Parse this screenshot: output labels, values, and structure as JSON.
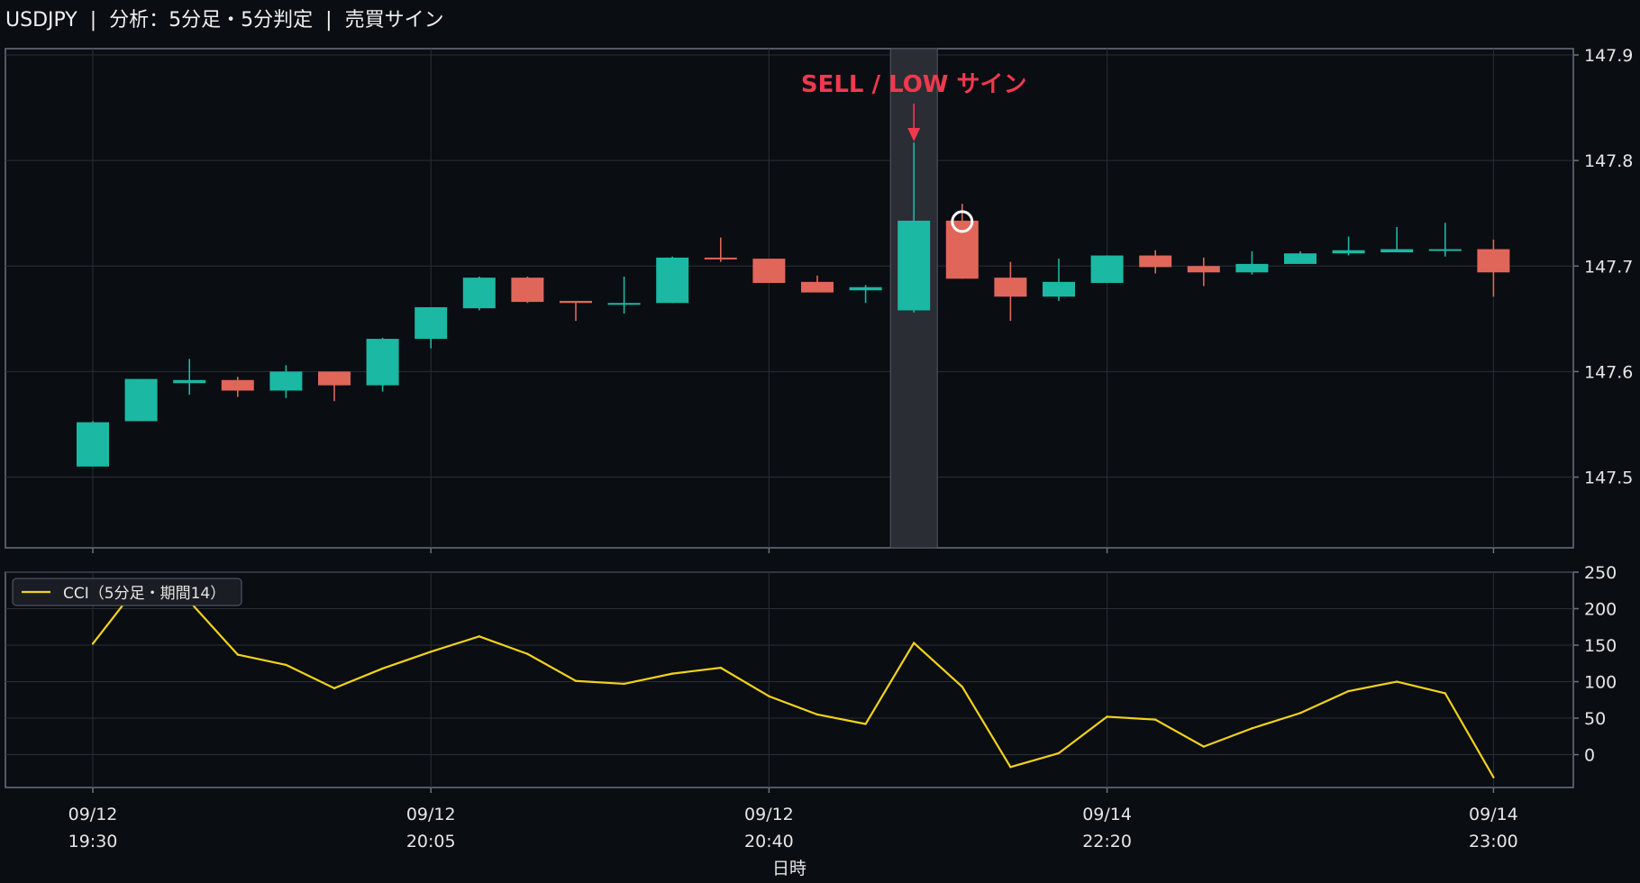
{
  "header": {
    "symbol": "USDJPY",
    "separator": "|",
    "analysis": "分析：5分足・5分判定",
    "signals": "売買サイン"
  },
  "colors": {
    "background": "#0a0d12",
    "bull": "#1bb8a3",
    "bear": "#e0665a",
    "cci_line": "#f2d21b",
    "signal_text": "#f0394f",
    "grid": "#2a2e36",
    "frame": "#6b7280",
    "highlight_band": "#2a2d33"
  },
  "chart_data": [
    {
      "type": "candlestick",
      "title": "",
      "ylabel": "",
      "ylim": [
        147.433,
        147.906
      ],
      "yticks": [
        "147.5",
        "147.6",
        "147.7",
        "147.8",
        "147.9"
      ],
      "grid": true,
      "candles": [
        {
          "o": 147.51,
          "h": 147.553,
          "l": 147.51,
          "c": 147.552
        },
        {
          "o": 147.553,
          "h": 147.593,
          "l": 147.553,
          "c": 147.593
        },
        {
          "o": 147.589,
          "h": 147.612,
          "l": 147.578,
          "c": 147.592
        },
        {
          "o": 147.592,
          "h": 147.595,
          "l": 147.576,
          "c": 147.582
        },
        {
          "o": 147.582,
          "h": 147.606,
          "l": 147.575,
          "c": 147.6
        },
        {
          "o": 147.6,
          "h": 147.6,
          "l": 147.572,
          "c": 147.587
        },
        {
          "o": 147.587,
          "h": 147.632,
          "l": 147.581,
          "c": 147.631
        },
        {
          "o": 147.631,
          "h": 147.661,
          "l": 147.622,
          "c": 147.661
        },
        {
          "o": 147.66,
          "h": 147.69,
          "l": 147.658,
          "c": 147.689
        },
        {
          "o": 147.689,
          "h": 147.69,
          "l": 147.665,
          "c": 147.666
        },
        {
          "o": 147.667,
          "h": 147.667,
          "l": 147.648,
          "c": 147.665
        },
        {
          "o": 147.664,
          "h": 147.69,
          "l": 147.655,
          "c": 147.665
        },
        {
          "o": 147.665,
          "h": 147.709,
          "l": 147.665,
          "c": 147.708
        },
        {
          "o": 147.708,
          "h": 147.727,
          "l": 147.704,
          "c": 147.707
        },
        {
          "o": 147.707,
          "h": 147.707,
          "l": 147.684,
          "c": 147.684
        },
        {
          "o": 147.685,
          "h": 147.691,
          "l": 147.675,
          "c": 147.675
        },
        {
          "o": 147.677,
          "h": 147.682,
          "l": 147.665,
          "c": 147.68
        },
        {
          "o": 147.658,
          "h": 147.817,
          "l": 147.656,
          "c": 147.743
        },
        {
          "o": 147.743,
          "h": 147.759,
          "l": 147.688,
          "c": 147.688
        },
        {
          "o": 147.689,
          "h": 147.704,
          "l": 147.648,
          "c": 147.671
        },
        {
          "o": 147.671,
          "h": 147.707,
          "l": 147.667,
          "c": 147.685
        },
        {
          "o": 147.684,
          "h": 147.71,
          "l": 147.684,
          "c": 147.71
        },
        {
          "o": 147.71,
          "h": 147.715,
          "l": 147.693,
          "c": 147.699
        },
        {
          "o": 147.7,
          "h": 147.708,
          "l": 147.681,
          "c": 147.694
        },
        {
          "o": 147.694,
          "h": 147.714,
          "l": 147.692,
          "c": 147.702
        },
        {
          "o": 147.702,
          "h": 147.714,
          "l": 147.702,
          "c": 147.712
        },
        {
          "o": 147.712,
          "h": 147.728,
          "l": 147.71,
          "c": 147.715
        },
        {
          "o": 147.713,
          "h": 147.737,
          "l": 147.713,
          "c": 147.716
        },
        {
          "o": 147.715,
          "h": 147.741,
          "l": 147.709,
          "c": 147.716
        },
        {
          "o": 147.716,
          "h": 147.725,
          "l": 147.671,
          "c": 147.694
        }
      ],
      "highlight_index": 17,
      "signal_marker_index": 18,
      "signal_marker_value": 147.743,
      "annotation": "SELL / LOW サイン"
    },
    {
      "type": "line",
      "legend": "CCI（5分足・期間14）",
      "legend_position": "top-left",
      "ylim": [
        -45,
        250
      ],
      "yticks": [
        "250",
        "200",
        "150",
        "100",
        "50",
        "0"
      ],
      "grid": true,
      "series": [
        {
          "name": "CCI（5分足・期間14）",
          "values": [
            152,
            237,
            210,
            137,
            123,
            91,
            118,
            141,
            162,
            138,
            101,
            97,
            111,
            119,
            80,
            55,
            42,
            153,
            93,
            -17,
            2,
            52,
            48,
            11,
            36,
            57,
            87,
            100,
            84,
            -31
          ]
        }
      ]
    }
  ],
  "xaxis": {
    "label": "日時",
    "ticks": [
      {
        "index": 0,
        "date": "09/12",
        "time": "19:30"
      },
      {
        "index": 7,
        "date": "09/12",
        "time": "20:05"
      },
      {
        "index": 14,
        "date": "09/12",
        "time": "20:40"
      },
      {
        "index": 21,
        "date": "09/14",
        "time": "22:20"
      },
      {
        "index": 29,
        "date": "09/14",
        "time": "23:00"
      }
    ]
  }
}
